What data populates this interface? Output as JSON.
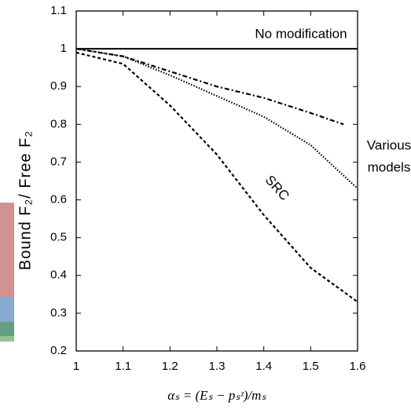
{
  "chart_data": {
    "type": "line",
    "y_label": "Bound F₂/ Free F₂",
    "x_label": "αₛ = (Eₛ − pₛᶻ)/mₛ",
    "xlim": [
      1,
      1.6
    ],
    "xticks": [
      1,
      1.1,
      1.2,
      1.3,
      1.4,
      1.5,
      1.6
    ],
    "ylim": [
      0.2,
      1.1
    ],
    "yticks": [
      0.2,
      0.3,
      0.4,
      0.5,
      0.6,
      0.7,
      0.8,
      0.9,
      1,
      1.1
    ],
    "grid": false,
    "series": [
      {
        "color": "#000000",
        "line_style": "solid",
        "x": [
          1,
          1.6
        ],
        "values": [
          1,
          1
        ]
      },
      {
        "color": "#000000",
        "line_style": "dashdot",
        "x": [
          1,
          1.1,
          1.2,
          1.3,
          1.4,
          1.5,
          1.57
        ],
        "values": [
          1,
          0.98,
          0.94,
          0.9,
          0.87,
          0.83,
          0.8
        ]
      },
      {
        "color": "#000000",
        "line_style": "dotted",
        "x": [
          1,
          1.1,
          1.2,
          1.3,
          1.4,
          1.5,
          1.6
        ],
        "values": [
          1,
          0.98,
          0.93,
          0.875,
          0.82,
          0.745,
          0.63
        ]
      },
      {
        "color": "#000000",
        "line_style": "dashed",
        "x": [
          1,
          1.1,
          1.2,
          1.3,
          1.4,
          1.5,
          1.6
        ],
        "values": [
          0.99,
          0.96,
          0.85,
          0.72,
          0.56,
          0.42,
          0.33
        ]
      }
    ],
    "annotations": {
      "no_modification": "No modification",
      "src": "SRC",
      "various": [
        "Various",
        "models"
      ]
    }
  }
}
